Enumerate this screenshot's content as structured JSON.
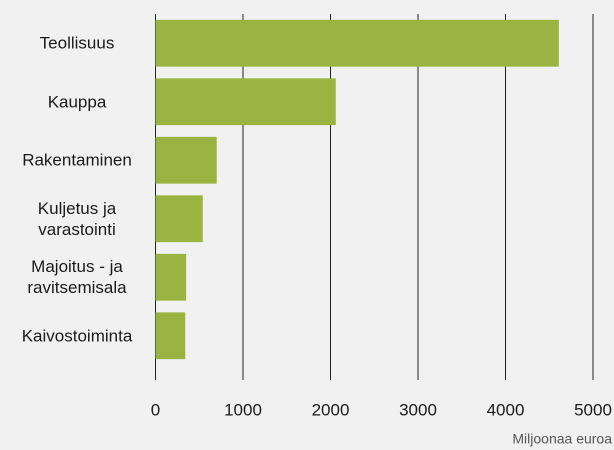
{
  "chart_data": {
    "type": "bar",
    "orientation": "horizontal",
    "categories": [
      "Teollisuus",
      "Kauppa",
      "Rakentaminen",
      "Kuljetus ja varastointi",
      "Majoitus - ja ravitsemisala",
      "Kaivostoiminta"
    ],
    "values": [
      4610,
      2060,
      700,
      540,
      350,
      340
    ],
    "color": "#9bb441",
    "xlim": [
      0,
      5000
    ],
    "xticks": [
      0,
      1000,
      2000,
      3000,
      4000,
      5000
    ],
    "xlabel": "Miljoonaa euroa",
    "grid": true
  }
}
